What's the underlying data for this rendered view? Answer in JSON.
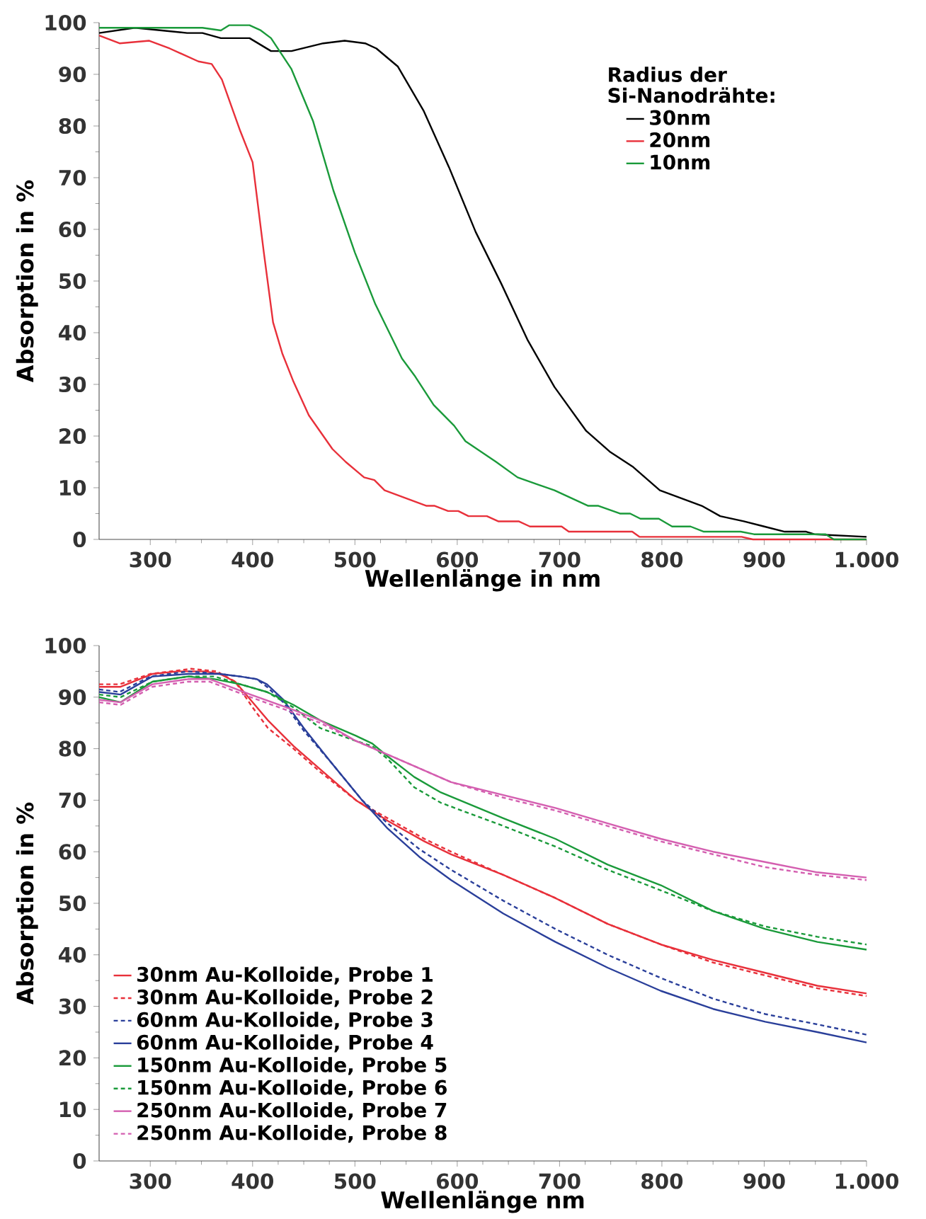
{
  "chart_data": [
    {
      "type": "line",
      "xlabel": "Wellenlänge in nm",
      "ylabel": "Absorption in %",
      "legend_title": "Radius der Si-Nanodrähte:",
      "legend": "top right",
      "xlim": [
        250,
        1000
      ],
      "ylim": [
        0,
        100
      ],
      "xticks": [
        300,
        400,
        500,
        600,
        700,
        800,
        900,
        {
          "value": 1000,
          "label": "1.000"
        }
      ],
      "yticks": [
        0,
        10,
        20,
        30,
        40,
        50,
        60,
        70,
        80,
        90,
        100
      ],
      "series": [
        {
          "name": "30nm",
          "color": "#000000",
          "x": [
            250,
            285,
            336,
            351,
            369,
            397,
            418,
            438,
            469,
            490,
            510,
            521,
            542,
            567,
            592,
            618,
            643,
            669,
            695,
            726,
            749,
            772,
            798,
            839,
            857,
            880,
            900,
            920,
            941,
            949,
            1000
          ],
          "values": [
            98,
            99,
            98,
            98,
            97,
            97,
            94.5,
            94.5,
            96,
            96.5,
            96,
            95,
            91.5,
            83,
            72,
            59.5,
            49.5,
            38.5,
            29.5,
            21,
            17,
            14,
            9.5,
            6.5,
            4.5,
            3.5,
            2.5,
            1.5,
            1.5,
            1,
            0.5
          ]
        },
        {
          "name": "20nm",
          "color": "#e8303a",
          "x": [
            250,
            270,
            299,
            319,
            347,
            360,
            370,
            388,
            400,
            411,
            420,
            429,
            440,
            455,
            478,
            491,
            509,
            519,
            529,
            570,
            578,
            591,
            601,
            611,
            629,
            640,
            660,
            671,
            702,
            709,
            771,
            778,
            878,
            889,
            1000
          ],
          "values": [
            97.5,
            96,
            96.5,
            95,
            92.5,
            92,
            89,
            79,
            73,
            55.5,
            42,
            36,
            30.5,
            24,
            17.5,
            15,
            12,
            11.5,
            9.5,
            6.5,
            6.5,
            5.5,
            5.5,
            4.5,
            4.5,
            3.5,
            3.5,
            2.5,
            2.5,
            1.5,
            1.5,
            0.5,
            0.5,
            0,
            0
          ]
        },
        {
          "name": "10nm",
          "color": "#1a9a3a",
          "x": [
            250,
            260,
            301,
            351,
            369,
            377,
            397,
            408,
            418,
            438,
            459,
            479,
            500,
            520,
            546,
            559,
            577,
            597,
            608,
            638,
            659,
            695,
            728,
            738,
            759,
            769,
            779,
            797,
            810,
            828,
            841,
            877,
            890,
            960,
            968,
            1000
          ],
          "values": [
            99,
            99,
            99,
            99,
            98.5,
            99.5,
            99.5,
            98.5,
            97,
            91,
            81,
            67.5,
            55.5,
            45.5,
            35,
            31.5,
            26,
            22,
            19,
            15,
            12,
            9.5,
            6.5,
            6.5,
            5,
            5,
            4,
            4,
            2.5,
            2.5,
            1.5,
            1.5,
            1,
            1,
            0,
            0
          ]
        }
      ]
    },
    {
      "type": "line",
      "xlabel": "Wellenlänge nm",
      "ylabel": "Absorption in %",
      "legend": "bottom left",
      "xlim": [
        250,
        1000
      ],
      "ylim": [
        0,
        100
      ],
      "xticks": [
        300,
        400,
        500,
        600,
        700,
        800,
        900,
        {
          "value": 1000,
          "label": "1.000"
        }
      ],
      "yticks": [
        0,
        10,
        20,
        30,
        40,
        50,
        60,
        70,
        80,
        90,
        100
      ],
      "series": [
        {
          "name": "30nm Au-Kolloide, Probe 1",
          "color": "#e8303a",
          "line_style": "solid",
          "x": [
            250,
            271,
            302,
            327,
            353,
            368,
            383,
            400,
            415,
            440,
            466,
            501,
            532,
            568,
            594,
            645,
            696,
            747,
            799,
            850,
            901,
            952,
            1000
          ],
          "values": [
            92,
            92,
            94.5,
            95,
            95,
            94.5,
            93,
            89,
            85.5,
            80.5,
            76,
            70,
            66,
            62,
            59.5,
            55.5,
            51,
            46,
            42,
            39,
            36.5,
            34,
            32.5
          ]
        },
        {
          "name": "30nm Au-Kolloide, Probe 2",
          "color": "#e8303a",
          "line_style": "dashed",
          "x": [
            250,
            270,
            300,
            340,
            365,
            383,
            400,
            415,
            440,
            466,
            501,
            532,
            568,
            594,
            645,
            696,
            747,
            799,
            850,
            901,
            952,
            1000
          ],
          "values": [
            92.5,
            92.5,
            94.5,
            95.5,
            95,
            93,
            88,
            84,
            80,
            75.5,
            70,
            66.5,
            62.5,
            60,
            55.5,
            51,
            46,
            42,
            38.5,
            36,
            33.5,
            32
          ]
        },
        {
          "name": "60nm Au-Kolloide, Probe 3",
          "color": "#2a3f9a",
          "line_style": "dashed",
          "x": [
            250,
            270,
            300,
            337,
            368,
            388,
            404,
            414,
            430,
            450,
            476,
            507,
            532,
            563,
            594,
            645,
            696,
            747,
            799,
            850,
            901,
            952,
            1000
          ],
          "values": [
            91.5,
            91,
            94,
            95,
            94.5,
            94,
            93.5,
            92,
            89,
            83.5,
            77.5,
            70,
            65.5,
            60.5,
            56.5,
            50.5,
            45,
            40,
            35.5,
            31.5,
            28.5,
            26.5,
            24.5
          ]
        },
        {
          "name": "60nm Au-Kolloide, Probe 4",
          "color": "#2a3f9a",
          "line_style": "solid",
          "x": [
            250,
            271,
            302,
            337,
            368,
            388,
            404,
            414,
            430,
            450,
            476,
            507,
            532,
            563,
            594,
            645,
            696,
            747,
            799,
            850,
            901,
            952,
            1000
          ],
          "values": [
            91,
            90.5,
            94,
            94.5,
            94.5,
            94,
            93.5,
            92.5,
            89.5,
            84,
            77.5,
            70,
            64.5,
            59,
            54.5,
            48,
            42.5,
            37.5,
            33,
            29.5,
            27,
            25,
            23
          ]
        },
        {
          "name": "150nm Au-Kolloide, Probe 5",
          "color": "#1a9a3a",
          "line_style": "solid",
          "x": [
            250,
            271,
            302,
            337,
            363,
            388,
            414,
            440,
            466,
            501,
            517,
            532,
            558,
            584,
            645,
            696,
            747,
            799,
            850,
            901,
            952,
            1000
          ],
          "values": [
            90,
            89,
            93,
            94,
            93.5,
            92.5,
            91,
            88.5,
            85.5,
            82.5,
            81,
            78.5,
            74.5,
            71.5,
            66.5,
            62.5,
            57.5,
            53.5,
            48.5,
            45,
            42.5,
            41
          ]
        },
        {
          "name": "150nm Au-Kolloide, Probe 6",
          "color": "#1a9a3a",
          "line_style": "dashed",
          "x": [
            250,
            271,
            302,
            337,
            363,
            388,
            414,
            440,
            466,
            501,
            517,
            532,
            558,
            584,
            645,
            696,
            747,
            799,
            850,
            901,
            952,
            1000
          ],
          "values": [
            90.5,
            90,
            93,
            94,
            94,
            92.5,
            91,
            88,
            84,
            81.5,
            80.5,
            78,
            72.5,
            69.5,
            65,
            61,
            56.5,
            52.5,
            48.5,
            45.5,
            43.5,
            42
          ]
        },
        {
          "name": "250nm Au-Kolloide, Probe 7",
          "color": "#d45fb0",
          "line_style": "solid",
          "x": [
            250,
            271,
            302,
            337,
            358,
            378,
            398,
            440,
            466,
            501,
            542,
            594,
            645,
            696,
            747,
            799,
            850,
            901,
            952,
            1000
          ],
          "values": [
            89.5,
            89,
            92.5,
            93.5,
            93.5,
            92,
            90.5,
            87.5,
            85.5,
            81.5,
            78,
            73.5,
            71,
            68.5,
            65.5,
            62.5,
            60,
            58,
            56,
            55
          ]
        },
        {
          "name": "250nm Au-Kolloide, Probe 8",
          "color": "#d45fb0",
          "line_style": "dashed",
          "x": [
            250,
            271,
            302,
            337,
            358,
            378,
            398,
            440,
            466,
            501,
            542,
            594,
            645,
            696,
            747,
            799,
            850,
            901,
            952,
            1000
          ],
          "values": [
            89,
            88.5,
            92,
            93,
            93,
            91.5,
            90,
            87,
            85,
            81.5,
            78,
            73.5,
            70.5,
            68,
            65,
            62,
            59.5,
            57,
            55.5,
            54.5
          ]
        }
      ]
    }
  ]
}
